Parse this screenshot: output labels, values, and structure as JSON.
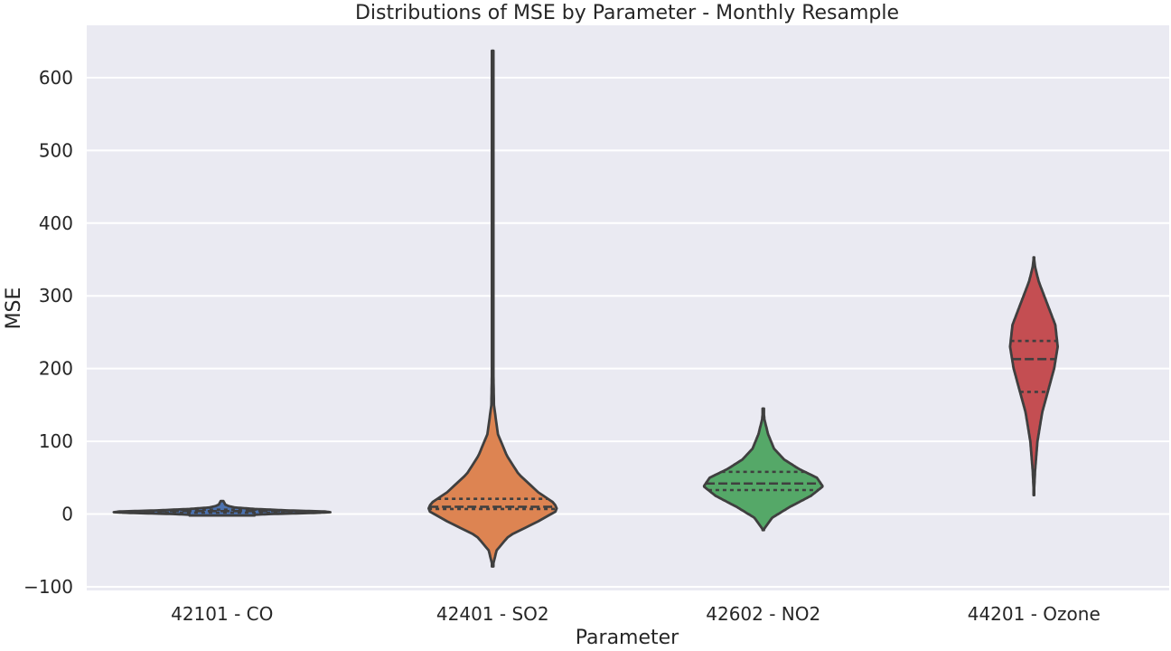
{
  "chart_data": {
    "type": "violin",
    "title": "Distributions of MSE by Parameter - Monthly Resample",
    "xlabel": "Parameter",
    "ylabel": "MSE",
    "ylim": [
      -105,
      672
    ],
    "yticks": [
      -100,
      0,
      100,
      200,
      300,
      400,
      500,
      600
    ],
    "ytick_labels": [
      "−100",
      "0",
      "100",
      "200",
      "300",
      "400",
      "500",
      "600"
    ],
    "grid": true,
    "background": "#eaeaf2",
    "categories": [
      "42101 - CO",
      "42401 - SO2",
      "42602 - NO2",
      "44201 - Ozone"
    ],
    "series": [
      {
        "color": "#4c72b0",
        "min": -2,
        "max": 18,
        "quartiles": [
          2,
          4,
          6
        ],
        "density": [
          [
            -1,
            0.3
          ],
          [
            0,
            0.45
          ],
          [
            1.5,
            0.85
          ],
          [
            2.5,
            1.0
          ],
          [
            3.5,
            0.95
          ],
          [
            5,
            0.6
          ],
          [
            7,
            0.3
          ],
          [
            9,
            0.12
          ],
          [
            11,
            0.06
          ],
          [
            13,
            0.03
          ],
          [
            16,
            0.02
          ],
          [
            18,
            0.01
          ]
        ],
        "width_scale": 1.0
      },
      {
        "color": "#dd8452",
        "min": -72,
        "max": 637,
        "quartiles": [
          7,
          10,
          21
        ],
        "density": [
          [
            -72,
            0.0
          ],
          [
            -50,
            0.06
          ],
          [
            -30,
            0.25
          ],
          [
            -10,
            0.7
          ],
          [
            5,
            1.0
          ],
          [
            15,
            0.95
          ],
          [
            30,
            0.7
          ],
          [
            55,
            0.4
          ],
          [
            80,
            0.22
          ],
          [
            110,
            0.08
          ],
          [
            150,
            0.02
          ],
          [
            250,
            0.0
          ]
        ],
        "width_scale": 0.6
      },
      {
        "color": "#55a868",
        "min": -22,
        "max": 145,
        "quartiles": [
          33,
          42,
          58
        ],
        "density": [
          [
            -22,
            0.0
          ],
          [
            -5,
            0.15
          ],
          [
            10,
            0.45
          ],
          [
            25,
            0.8
          ],
          [
            38,
            1.0
          ],
          [
            50,
            0.9
          ],
          [
            62,
            0.6
          ],
          [
            75,
            0.35
          ],
          [
            90,
            0.18
          ],
          [
            110,
            0.08
          ],
          [
            130,
            0.02
          ],
          [
            145,
            0.0
          ]
        ],
        "width_scale": 0.55
      },
      {
        "color": "#c44e52",
        "min": 26,
        "max": 353,
        "quartiles": [
          168,
          213,
          238
        ],
        "density": [
          [
            26,
            0.0
          ],
          [
            60,
            0.05
          ],
          [
            100,
            0.15
          ],
          [
            140,
            0.35
          ],
          [
            170,
            0.6
          ],
          [
            200,
            0.85
          ],
          [
            230,
            1.0
          ],
          [
            260,
            0.9
          ],
          [
            290,
            0.55
          ],
          [
            320,
            0.2
          ],
          [
            340,
            0.05
          ],
          [
            353,
            0.0
          ]
        ],
        "width_scale": 0.22
      }
    ]
  }
}
